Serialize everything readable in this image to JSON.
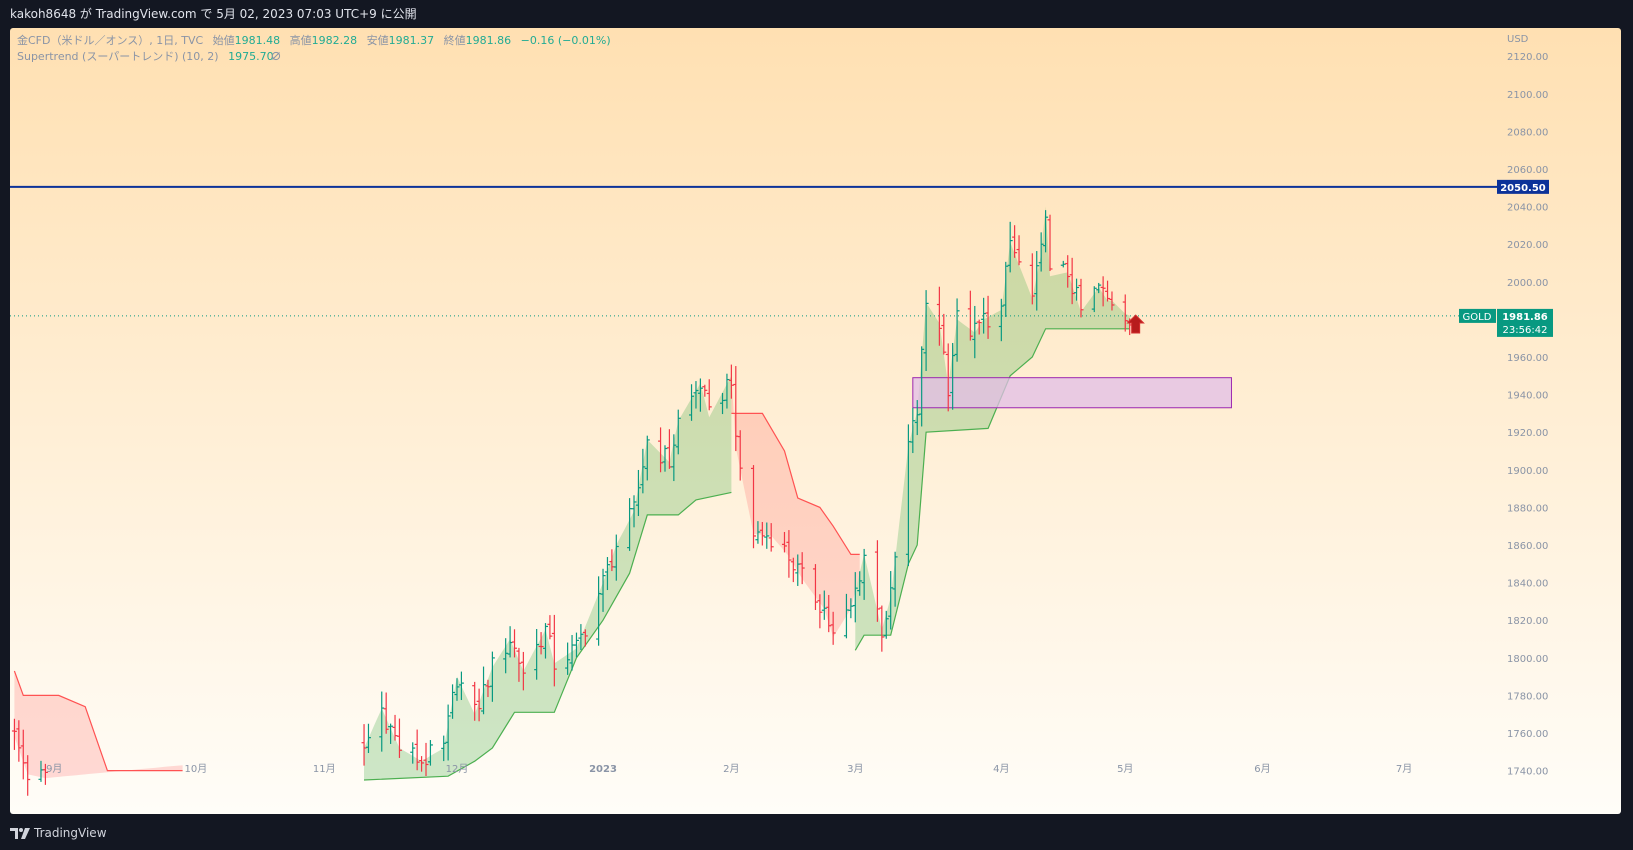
{
  "header": {
    "publisher_line": "kakoh8648 が TradingView.com で 5月 02, 2023 07:03 UTC+9 に公開"
  },
  "legend": {
    "symbol": "金CFD（米ドル／オンス）, 1日, TVC",
    "open_label": "始値",
    "open": "1981.48",
    "high_label": "高値",
    "high": "1982.28",
    "low_label": "安値",
    "low": "1981.37",
    "close_label": "終値",
    "close": "1981.86",
    "change": "−0.16 (−0.01%)",
    "indicator_name": "Supertrend (スーパートレンド) (10, 2)",
    "indicator_value": "1975.70",
    "indicator_icon": "hidden-eye-icon"
  },
  "price_scale": {
    "currency": "USD",
    "resistance_label": "2050.50",
    "symbol_tag": "GOLD",
    "last_price_label": "1981.86",
    "countdown": "23:56:42"
  },
  "footer": {
    "brand": "TradingView",
    "brand_icon": "tradingview-logo-icon"
  },
  "colors": {
    "up_candle": "#089981",
    "down_candle": "#f23645",
    "supertrend_up": "#4caf50",
    "supertrend_down": "#ff5252",
    "resistance_line": "#0c3299",
    "zone_fill": "#e1bee7",
    "zone_border": "#9c27b0",
    "background_top": "#ffe0b2",
    "background_bottom": "#fffdf8"
  },
  "chart_data": {
    "type": "candlestick",
    "title": "",
    "xlabel": "",
    "ylabel": "",
    "ylim": [
      1735,
      2135
    ],
    "yticks": [
      1740,
      1760,
      1780,
      1800,
      1820,
      1840,
      1860,
      1880,
      1900,
      1920,
      1940,
      1960,
      1980,
      2000,
      2020,
      2040,
      2060,
      2080,
      2100,
      2120
    ],
    "ytick_labels": [
      "1740.00",
      "1760.00",
      "1780.00",
      "1800.00",
      "1820.00",
      "1840.00",
      "1860.00",
      "1880.00",
      "1900.00",
      "1920.00",
      "1940.00",
      "1960.00",
      "1980.00",
      "2000.00",
      "2020.00",
      "2040.00",
      "2060.00",
      "2080.00",
      "2100.00",
      "2120.00"
    ],
    "x_range": [
      "2022-08-22",
      "2023-07-24"
    ],
    "xticks": [
      {
        "date": "2022-09-01",
        "label": "9月"
      },
      {
        "date": "2022-10-03",
        "label": "10月"
      },
      {
        "date": "2022-11-01",
        "label": "11月"
      },
      {
        "date": "2022-12-01",
        "label": "12月"
      },
      {
        "date": "2023-01-03",
        "label": "2023"
      },
      {
        "date": "2023-02-01",
        "label": "2月"
      },
      {
        "date": "2023-03-01",
        "label": "3月"
      },
      {
        "date": "2023-04-03",
        "label": "4月"
      },
      {
        "date": "2023-05-01",
        "label": "5月"
      },
      {
        "date": "2023-06-01",
        "label": "6月"
      },
      {
        "date": "2023-07-03",
        "label": "7月"
      }
    ],
    "horizontal_line": {
      "y": 2050.5
    },
    "last_price": 1981.86,
    "zone": {
      "x0": "2023-03-14",
      "x1": "2023-05-25",
      "y0": 1933,
      "y1": 1949
    },
    "signal": {
      "date": "2023-05-02",
      "direction": "up",
      "y": 1977
    },
    "series": [
      {
        "name": "close",
        "kind": "price",
        "points": [
          [
            "2022-08-23",
            1758
          ],
          [
            "2022-08-26",
            1738
          ],
          [
            "2022-08-30",
            1736
          ],
          [
            "2022-11-10",
            1752
          ],
          [
            "2022-11-14",
            1773
          ],
          [
            "2022-11-18",
            1752
          ],
          [
            "2022-11-23",
            1745
          ],
          [
            "2022-11-28",
            1752
          ],
          [
            "2022-12-01",
            1790
          ],
          [
            "2022-12-05",
            1770
          ],
          [
            "2022-12-09",
            1795
          ],
          [
            "2022-12-13",
            1810
          ],
          [
            "2022-12-16",
            1793
          ],
          [
            "2022-12-21",
            1815
          ],
          [
            "2022-12-23",
            1797
          ],
          [
            "2022-12-28",
            1805
          ],
          [
            "2023-01-03",
            1840
          ],
          [
            "2023-01-06",
            1860
          ],
          [
            "2023-01-10",
            1878
          ],
          [
            "2023-01-13",
            1916
          ],
          [
            "2023-01-18",
            1904
          ],
          [
            "2023-01-20",
            1926
          ],
          [
            "2023-01-25",
            1946
          ],
          [
            "2023-01-27",
            1928
          ],
          [
            "2023-02-01",
            1950
          ],
          [
            "2023-02-02",
            1912
          ],
          [
            "2023-02-06",
            1866
          ],
          [
            "2023-02-10",
            1865
          ],
          [
            "2023-02-14",
            1854
          ],
          [
            "2023-02-17",
            1842
          ],
          [
            "2023-02-22",
            1826
          ],
          [
            "2023-02-24",
            1811
          ],
          [
            "2023-02-28",
            1826
          ],
          [
            "2023-03-03",
            1855
          ],
          [
            "2023-03-07",
            1815
          ],
          [
            "2023-03-09",
            1832
          ],
          [
            "2023-03-13",
            1913
          ],
          [
            "2023-03-15",
            1931
          ],
          [
            "2023-03-17",
            1989
          ],
          [
            "2023-03-20",
            1978
          ],
          [
            "2023-03-22",
            1945
          ],
          [
            "2023-03-24",
            1980
          ],
          [
            "2023-03-28",
            1973
          ],
          [
            "2023-03-30",
            1980
          ],
          [
            "2023-04-03",
            1985
          ],
          [
            "2023-04-05",
            2021
          ],
          [
            "2023-04-10",
            1991
          ],
          [
            "2023-04-12",
            2015
          ],
          [
            "2023-04-13",
            2040
          ],
          [
            "2023-04-14",
            2003
          ],
          [
            "2023-04-18",
            2005
          ],
          [
            "2023-04-21",
            1984
          ],
          [
            "2023-04-25",
            1997
          ],
          [
            "2023-04-27",
            1990
          ],
          [
            "2023-04-28",
            1990
          ],
          [
            "2023-05-01",
            1983
          ],
          [
            "2023-05-02",
            1982
          ]
        ]
      },
      {
        "name": "supertrend_down",
        "kind": "band",
        "points": [
          [
            "2022-08-23",
            1793
          ],
          [
            "2022-08-25",
            1780
          ],
          [
            "2022-09-02",
            1780
          ],
          [
            "2022-09-08",
            1774
          ],
          [
            "2022-09-13",
            1740
          ],
          [
            "2022-09-30",
            1740
          ]
        ]
      },
      {
        "name": "supertrend_up",
        "kind": "band",
        "points": [
          [
            "2022-11-10",
            1735
          ],
          [
            "2022-11-29",
            1737
          ],
          [
            "2022-12-05",
            1745
          ],
          [
            "2022-12-09",
            1752
          ],
          [
            "2022-12-14",
            1771
          ],
          [
            "2022-12-23",
            1771
          ],
          [
            "2022-12-28",
            1800
          ],
          [
            "2023-01-03",
            1820
          ],
          [
            "2023-01-09",
            1845
          ],
          [
            "2023-01-13",
            1876
          ],
          [
            "2023-01-20",
            1876
          ],
          [
            "2023-01-24",
            1884
          ],
          [
            "2023-02-01",
            1888
          ]
        ]
      },
      {
        "name": "supertrend_down",
        "kind": "band",
        "points": [
          [
            "2023-02-01",
            1930
          ],
          [
            "2023-02-08",
            1930
          ],
          [
            "2023-02-13",
            1910
          ],
          [
            "2023-02-16",
            1885
          ],
          [
            "2023-02-21",
            1880
          ],
          [
            "2023-02-24",
            1870
          ],
          [
            "2023-02-28",
            1855
          ],
          [
            "2023-03-02",
            1855
          ]
        ]
      },
      {
        "name": "supertrend_up",
        "kind": "band",
        "points": [
          [
            "2023-03-01",
            1804
          ],
          [
            "2023-03-03",
            1812
          ],
          [
            "2023-03-09",
            1812
          ],
          [
            "2023-03-13",
            1850
          ],
          [
            "2023-03-15",
            1860
          ],
          [
            "2023-03-17",
            1920
          ],
          [
            "2023-03-31",
            1922
          ],
          [
            "2023-04-05",
            1950
          ],
          [
            "2023-04-10",
            1960
          ],
          [
            "2023-04-13",
            1975
          ],
          [
            "2023-05-02",
            1975
          ]
        ]
      }
    ]
  }
}
